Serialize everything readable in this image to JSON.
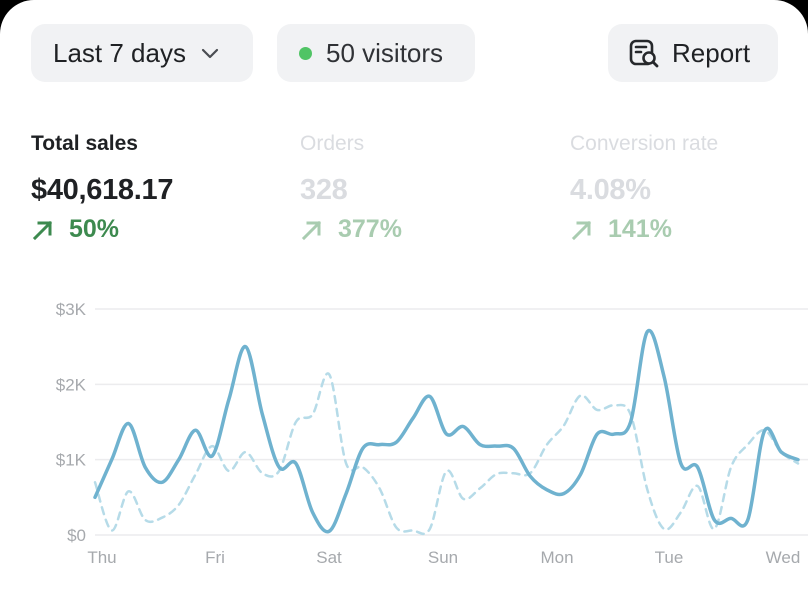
{
  "filters": {
    "range_label": "Last 7 days",
    "visitors_label": "50 visitors",
    "report_label": "Report",
    "icons": {
      "range": "chevron-down-icon",
      "visitors": "live-dot-icon",
      "report": "report-search-icon"
    }
  },
  "colors": {
    "live_dot": "#50c465",
    "positive": "#3d8a4f",
    "positive_faded": "#a9ccb0",
    "series_current": "#6fb2cf",
    "series_previous": "#b6dbe8",
    "grid": "#ececee"
  },
  "metrics": [
    {
      "label": "Total sales",
      "value": "$40,618.17",
      "change": "50%",
      "active": true
    },
    {
      "label": "Orders",
      "value": "328",
      "change": "377%",
      "active": false
    },
    {
      "label": "Conversion rate",
      "value": "4.08%",
      "change": "141%",
      "active": false
    }
  ],
  "chart_data": {
    "type": "line",
    "y_ticks": [
      "$0",
      "$1K",
      "$2K",
      "$3K"
    ],
    "ylim": [
      0,
      3000
    ],
    "x_ticks": [
      "Thu",
      "Fri",
      "Sat",
      "Sun",
      "Mon",
      "Tue",
      "Wed"
    ],
    "grid": true,
    "series": [
      {
        "style": "solid",
        "values": [
          500,
          1000,
          1480,
          900,
          700,
          1000,
          1390,
          1050,
          1800,
          2500,
          1600,
          900,
          950,
          300,
          50,
          550,
          1150,
          1200,
          1230,
          1550,
          1840,
          1340,
          1440,
          1200,
          1180,
          1150,
          780,
          600,
          550,
          800,
          1340,
          1340,
          1500,
          2700,
          2100,
          950,
          900,
          200,
          220,
          200,
          1380,
          1100,
          1000
        ]
      },
      {
        "style": "dashed",
        "values": [
          700,
          60,
          580,
          200,
          230,
          400,
          800,
          1180,
          850,
          1100,
          820,
          850,
          1500,
          1600,
          2130,
          950,
          900,
          620,
          100,
          60,
          80,
          850,
          480,
          620,
          810,
          820,
          820,
          1200,
          1450,
          1850,
          1660,
          1720,
          1600,
          600,
          80,
          300,
          650,
          80,
          900,
          1200,
          1390,
          1100,
          950
        ]
      }
    ]
  }
}
